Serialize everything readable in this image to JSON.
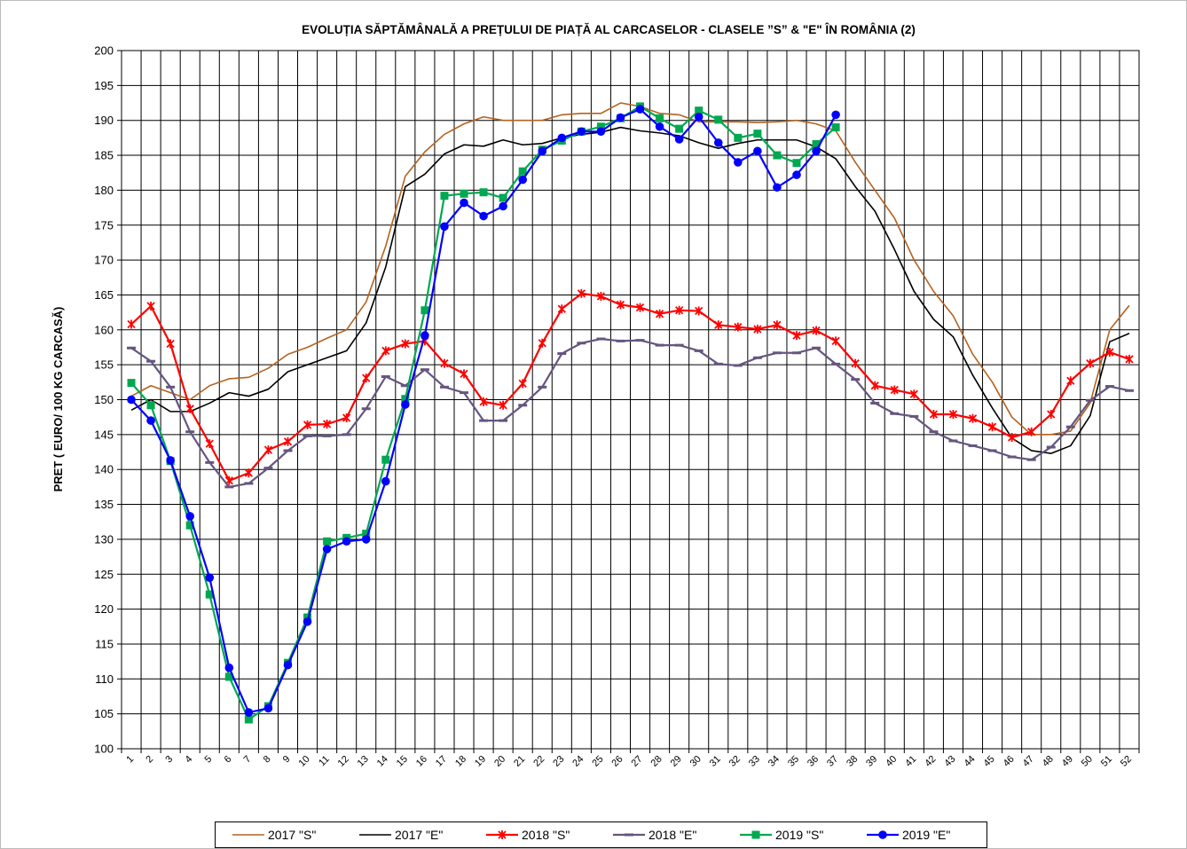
{
  "chart_data": {
    "type": "line",
    "title": "EVOLUȚIA SĂPTĂMÂNALĂ A PREȚULUI  DE PIAȚĂ  AL CARCASELOR  - CLASELE ”S” & \"E\"  ÎN ROMÂNIA (2)",
    "y_label": "PRET ( EURO/ 100 KG CARCASĂ)",
    "categories": [
      "1",
      "2",
      "3",
      "4",
      "5",
      "6",
      "7",
      "8",
      "9",
      "10",
      "11",
      "12",
      "13",
      "14",
      "15",
      "16",
      "17",
      "18",
      "19",
      "20",
      "21",
      "22",
      "23",
      "24",
      "25",
      "26",
      "27",
      "28",
      "29",
      "30",
      "31",
      "32",
      "33",
      "34",
      "35",
      "36",
      "37",
      "38",
      "39",
      "40",
      "41",
      "42",
      "43",
      "44",
      "45",
      "46",
      "47",
      "48",
      "49",
      "50",
      "51",
      "52"
    ],
    "ylim": [
      100,
      200
    ],
    "yticks": [
      100,
      105,
      110,
      115,
      120,
      125,
      130,
      135,
      140,
      145,
      150,
      155,
      160,
      165,
      170,
      175,
      180,
      185,
      190,
      195,
      200
    ],
    "grid": true,
    "legend": "bottom",
    "series": [
      {
        "name": "2017 \"S\"",
        "color": "#b5621f",
        "marker": "none",
        "values": [
          150.5,
          152,
          151,
          150,
          152,
          153,
          153.2,
          154.5,
          156.5,
          157.5,
          158.8,
          160,
          164,
          172,
          182,
          185.5,
          188,
          189.5,
          190.5,
          190,
          190,
          190,
          190.8,
          191,
          191,
          192.5,
          192,
          191,
          190.8,
          189.8,
          189.8,
          189.8,
          189.7,
          189.8,
          190,
          189.5,
          188.5,
          184,
          180,
          176,
          170,
          165.5,
          162,
          156.5,
          152.5,
          147.5,
          145,
          145,
          145.5,
          149.5,
          160,
          163.5
        ]
      },
      {
        "name": "2017 \"E\"",
        "color": "#000000",
        "marker": "none",
        "values": [
          148.5,
          150,
          148.3,
          148.3,
          149.5,
          151,
          150.5,
          151.5,
          154,
          155,
          156,
          157,
          161,
          169,
          180.5,
          182.3,
          185.2,
          186.5,
          186.3,
          187.2,
          186.5,
          186.7,
          187.5,
          188,
          188.3,
          189,
          188.5,
          188.2,
          187.8,
          186.8,
          186,
          186.7,
          187.2,
          187.2,
          187.2,
          186.2,
          184.5,
          180.5,
          177,
          171.5,
          165.5,
          161.5,
          159,
          153.5,
          148.8,
          144.5,
          142.7,
          142.3,
          143.4,
          147.7,
          158.3,
          159.5
        ]
      },
      {
        "name": "2018 \"S\"",
        "color": "#ff0000",
        "marker": "x",
        "values": [
          160.8,
          163.4,
          158,
          148.7,
          143.7,
          138.4,
          139.5,
          142.8,
          144,
          146.4,
          146.5,
          147.4,
          153.1,
          157,
          158,
          158.4,
          155.2,
          153.7,
          149.7,
          149.2,
          152.3,
          158.1,
          163,
          165.2,
          164.8,
          163.6,
          163.2,
          162.3,
          162.8,
          162.7,
          160.7,
          160.4,
          160.1,
          160.7,
          159.2,
          159.9,
          158.4,
          155.2,
          152,
          151.4,
          150.8,
          147.9,
          147.9,
          147.3,
          146.1,
          144.6,
          145.4,
          147.9,
          152.7,
          155.2,
          156.8,
          155.8
        ]
      },
      {
        "name": "2018 \"E\"",
        "color": "#66557f",
        "marker": "dash",
        "values": [
          157.4,
          155.5,
          151.8,
          145.4,
          141,
          137.5,
          138,
          140.2,
          142.7,
          144.8,
          144.8,
          145,
          148.7,
          153.3,
          152,
          154.3,
          151.8,
          151,
          147,
          147,
          149.2,
          151.8,
          156.6,
          158.1,
          158.7,
          158.4,
          158.5,
          157.8,
          157.8,
          157,
          155.1,
          154.9,
          156,
          156.7,
          156.7,
          157.4,
          155.1,
          152.9,
          149.5,
          148,
          147.6,
          145.4,
          144.1,
          143.4,
          142.7,
          141.8,
          141.4,
          143.2,
          146.1,
          149.9,
          151.9,
          151.3
        ]
      },
      {
        "name": "2019 \"S\"",
        "color": "#00a84f",
        "marker": "square",
        "values": [
          152.4,
          149.2,
          141.2,
          132,
          122.1,
          110.3,
          104.2,
          106.1,
          112.3,
          118.8,
          129.7,
          130.2,
          130.8,
          141.4,
          150.1,
          162.8,
          179.2,
          179.5,
          179.7,
          178.9,
          182.7,
          185.8,
          187.1,
          188.4,
          189.1,
          190.3,
          192,
          190.3,
          188.8,
          191.4,
          190.1,
          187.5,
          188.1,
          185,
          183.9,
          186.6,
          189,
          null,
          null,
          null,
          null,
          null,
          null,
          null,
          null,
          null,
          null,
          null,
          null,
          null,
          null,
          null
        ]
      },
      {
        "name": "2019 \"E\"",
        "color": "#0000ff",
        "marker": "circle",
        "values": [
          150,
          147,
          141.3,
          133.3,
          124.5,
          111.6,
          105.2,
          105.8,
          112,
          118.2,
          128.6,
          129.7,
          130,
          138.3,
          149.3,
          159.2,
          174.8,
          178.2,
          176.3,
          177.7,
          181.5,
          185.6,
          187.5,
          188.4,
          188.4,
          190.4,
          191.6,
          189.1,
          187.3,
          190.5,
          186.8,
          184,
          185.6,
          180.4,
          182.2,
          185.6,
          190.8,
          null,
          null,
          null,
          null,
          null,
          null,
          null,
          null,
          null,
          null,
          null,
          null,
          null,
          null,
          null
        ]
      }
    ]
  }
}
